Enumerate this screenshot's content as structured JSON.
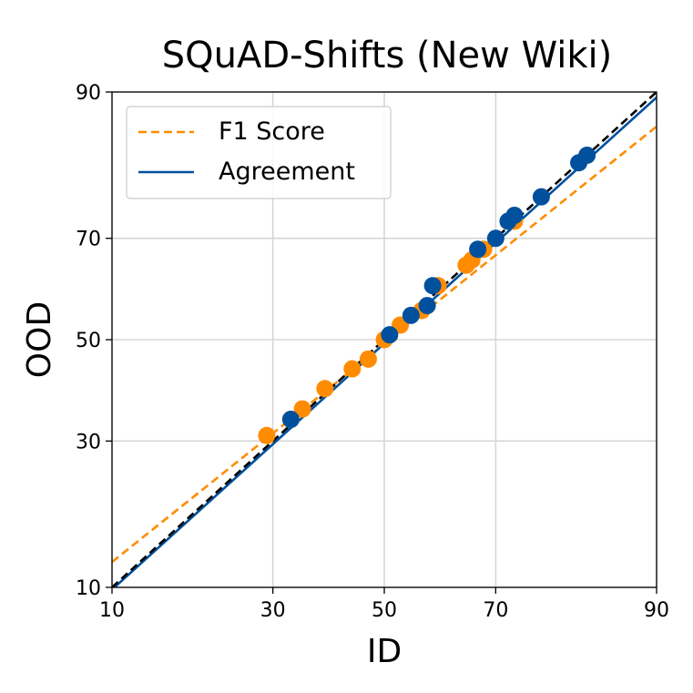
{
  "chart_data": {
    "type": "scatter",
    "title": "SQuAD-Shifts (New Wiki)",
    "xlabel": "ID",
    "ylabel": "OOD",
    "xlim": [
      10,
      90
    ],
    "ylim": [
      10,
      90
    ],
    "x_ticks": [
      10,
      30,
      50,
      70,
      90
    ],
    "y_ticks": [
      10,
      30,
      50,
      70,
      90
    ],
    "x_tick_labels": [
      "10",
      "30",
      "50",
      "70",
      "90"
    ],
    "y_tick_labels": [
      "10",
      "30",
      "50",
      "70",
      "90"
    ],
    "scale": "probit",
    "grid": true,
    "legend_position": "top-left",
    "reference_line": {
      "style": "dashed",
      "color": "#000000",
      "x": [
        10,
        90
      ],
      "y": [
        10,
        90
      ]
    },
    "series": [
      {
        "name": "F1 Score",
        "color": "#ff8c00",
        "style": "dashed",
        "fit_line": {
          "x": [
            10,
            90
          ],
          "y": [
            12.5,
            86.5
          ]
        },
        "points": [
          [
            29,
            31
          ],
          [
            33,
            34
          ],
          [
            35,
            36
          ],
          [
            39,
            40
          ],
          [
            44,
            44
          ],
          [
            47,
            46
          ],
          [
            50,
            50
          ],
          [
            53,
            53
          ],
          [
            57,
            56
          ],
          [
            60,
            61
          ],
          [
            65,
            65
          ],
          [
            66,
            66
          ],
          [
            68,
            68
          ],
          [
            72,
            73
          ],
          [
            73,
            73
          ]
        ]
      },
      {
        "name": "Agreement",
        "color": "#00509e",
        "style": "solid",
        "fit_line": {
          "x": [
            10,
            90
          ],
          "y": [
            9.8,
            89.5
          ]
        },
        "points": [
          [
            33,
            34
          ],
          [
            51,
            51
          ],
          [
            55,
            55
          ],
          [
            58,
            57
          ],
          [
            59,
            61
          ],
          [
            67,
            68
          ],
          [
            70,
            70
          ],
          [
            72,
            73
          ],
          [
            73,
            74
          ],
          [
            77,
            77
          ],
          [
            82,
            82
          ],
          [
            83,
            83
          ]
        ]
      }
    ]
  }
}
